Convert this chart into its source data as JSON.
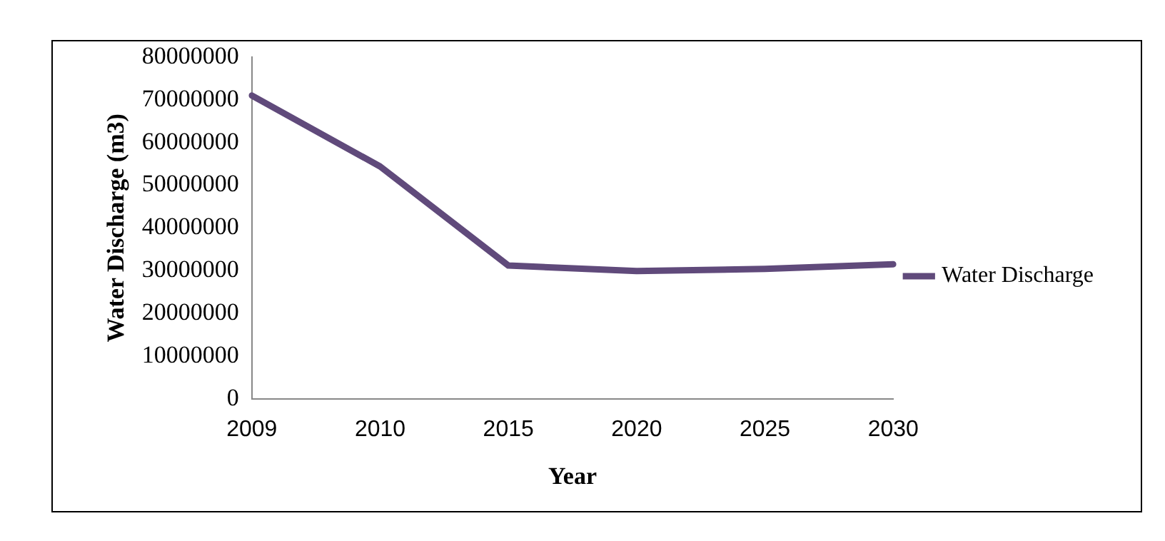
{
  "chart_data": {
    "type": "line",
    "xlabel": "Year",
    "ylabel": "Water Discharge (m3)",
    "categories": [
      "2009",
      "2010",
      "2015",
      "2020",
      "2025",
      "2030"
    ],
    "series": [
      {
        "name": "Water Discharge",
        "color": "#604a7b",
        "values": [
          71000000,
          54400000,
          31200000,
          29900000,
          30400000,
          31500000
        ]
      }
    ],
    "ylim": [
      0,
      80000000
    ],
    "yticks": [
      0,
      10000000,
      20000000,
      30000000,
      40000000,
      50000000,
      60000000,
      70000000,
      80000000
    ],
    "grid": false,
    "legend": "right",
    "marker": "none",
    "line_style": "solid"
  }
}
